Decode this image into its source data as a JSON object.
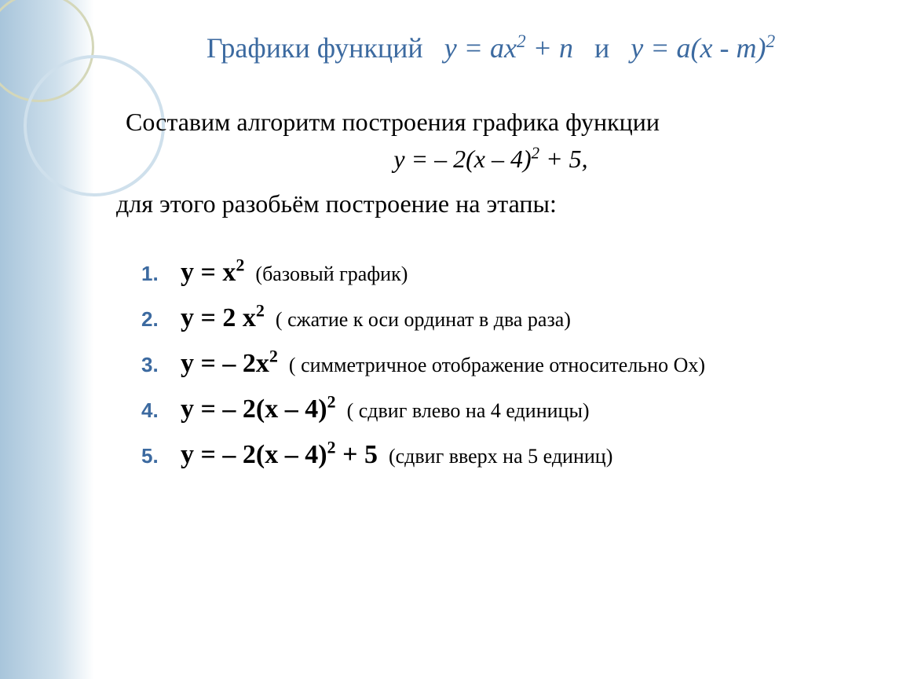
{
  "title_prefix": "Графики функций",
  "title_f1": "у = ах² + n",
  "title_conj": "и",
  "title_f2": "у = а(х - m)²",
  "lead": "Составим алгоритм построения графика функции",
  "main_formula": "у = – 2(х – 4)² + 5",
  "lead2": "для этого разобьём построение на этапы:",
  "steps": [
    {
      "n": "1.",
      "eq": "у = х²",
      "note": "(базовый график)"
    },
    {
      "n": "2.",
      "eq": "у = 2 х²",
      "note": "( сжатие к оси ординат в два раза)"
    },
    {
      "n": "3.",
      "eq": "у = – 2х²",
      "note": "( симметричное отображение относительно Ох)"
    },
    {
      "n": "4.",
      "eq": "у = – 2(х – 4)²",
      "note": "( сдвиг влево на 4 единицы)"
    },
    {
      "n": "5.",
      "eq": "у = – 2(х – 4)² + 5",
      "note": "(сдвиг вверх на 5 единиц)"
    }
  ],
  "colors": {
    "accent": "#3c6aa0",
    "text": "#000000",
    "bg_grad_start": "#a8c5db",
    "circle1": "#d4d7b9",
    "circle2": "#cfe0ec"
  },
  "fontsizes": {
    "title": 36,
    "body": 32,
    "step_number": 26,
    "equation": 34,
    "note": 26
  }
}
